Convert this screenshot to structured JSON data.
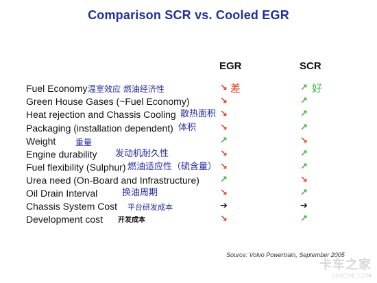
{
  "title": "Comparison SCR vs. Cooled EGR",
  "columns": {
    "egr": "EGR",
    "scr": "SCR"
  },
  "colors": {
    "up": "#39b33a",
    "down": "#e23a1c",
    "neutral": "#111111",
    "title": "#1f2f9e",
    "annotation": "#1f2aa6"
  },
  "rows": [
    {
      "label": "Fuel Economy",
      "cn": "温室效应 燃油经济性",
      "egr": "down-right-arrow",
      "scr": "up-right-arrow",
      "egr_note": "差",
      "scr_note": "好"
    },
    {
      "label": "Green House Gases (~Fuel Economy)",
      "cn": "",
      "egr": "down-right-arrow",
      "scr": "up-right-arrow"
    },
    {
      "label": "Heat rejection and Chassis Cooling",
      "cn": "散热面积",
      "egr": "down-right-arrow",
      "scr": "up-right-arrow"
    },
    {
      "label": "Packaging (installation dependent)",
      "cn": "体积",
      "egr": "down-right-arrow",
      "scr": "up-right-arrow"
    },
    {
      "label": "Weight",
      "cn": "重量",
      "egr": "up-right-arrow",
      "scr": "down-right-arrow"
    },
    {
      "label": "Engine durability",
      "cn": "发动机耐久性",
      "egr": "down-right-arrow",
      "scr": "up-right-arrow"
    },
    {
      "label": "Fuel flexibility (Sulphur)",
      "cn": "燃油适应性（硫含量）",
      "egr": "down-right-arrow",
      "scr": "up-right-arrow"
    },
    {
      "label": "Urea need (On-Board and Infrastructure)",
      "cn": "",
      "egr": "up-right-arrow",
      "scr": "down-right-arrow"
    },
    {
      "label": "Oil Drain Interval",
      "cn": "换油周期",
      "egr": "down-right-arrow",
      "scr": "up-right-arrow"
    },
    {
      "label": "Chassis System Cost",
      "cn": "平台研发成本",
      "egr": "right-arrow",
      "scr": "right-arrow"
    },
    {
      "label": "Development cost",
      "cn": "开发成本",
      "egr": "down-right-arrow",
      "scr": "up-right-arrow"
    }
  ],
  "source": "Source: Volvo Powertrain, September 2005",
  "watermark": {
    "cn": "卡车之家",
    "en": "360CHE.COM"
  }
}
